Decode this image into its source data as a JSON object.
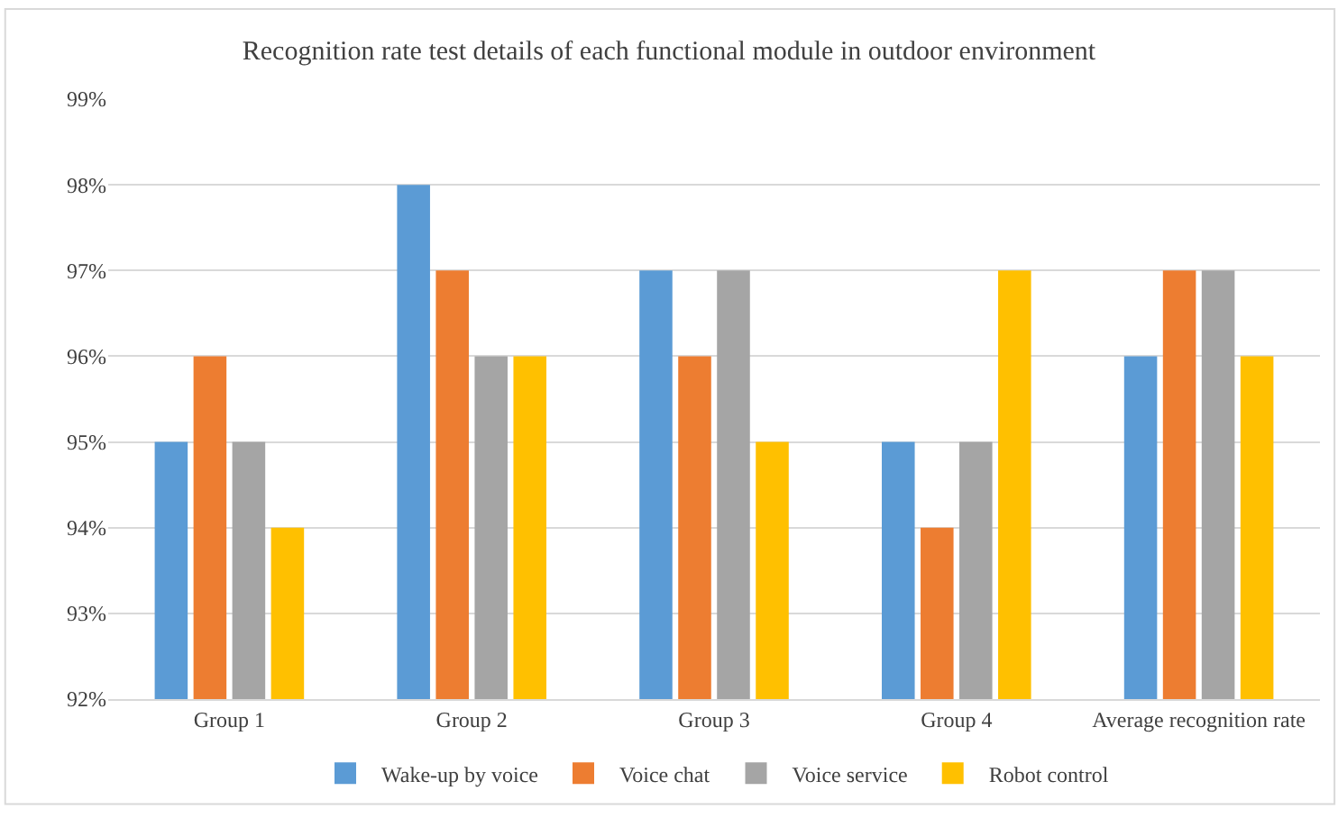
{
  "chart_data": {
    "type": "bar",
    "title": "Recognition rate test details of each functional module in outdoor environment",
    "categories": [
      "Group 1",
      "Group 2",
      "Group 3",
      "Group 4",
      "Average recognition rate"
    ],
    "series": [
      {
        "name": "Wake-up by voice",
        "color": "#5b9bd5",
        "values": [
          95,
          98,
          97,
          95,
          96
        ]
      },
      {
        "name": "Voice chat",
        "color": "#ed7d31",
        "values": [
          96,
          97,
          96,
          94,
          97
        ]
      },
      {
        "name": "Voice service",
        "color": "#a5a5a5",
        "values": [
          95,
          96,
          97,
          95,
          97
        ]
      },
      {
        "name": "Robot control",
        "color": "#ffc000",
        "values": [
          94,
          96,
          95,
          97,
          96
        ]
      }
    ],
    "ylim": [
      92,
      99
    ],
    "yticks": [
      {
        "value": 92,
        "label": "92%"
      },
      {
        "value": 93,
        "label": "93%"
      },
      {
        "value": 94,
        "label": "94%"
      },
      {
        "value": 95,
        "label": "95%"
      },
      {
        "value": 96,
        "label": "96%"
      },
      {
        "value": 97,
        "label": "97%"
      },
      {
        "value": 98,
        "label": "98%"
      },
      {
        "value": 99,
        "label": "99%"
      }
    ],
    "grid": "y",
    "legend": "bottom"
  }
}
